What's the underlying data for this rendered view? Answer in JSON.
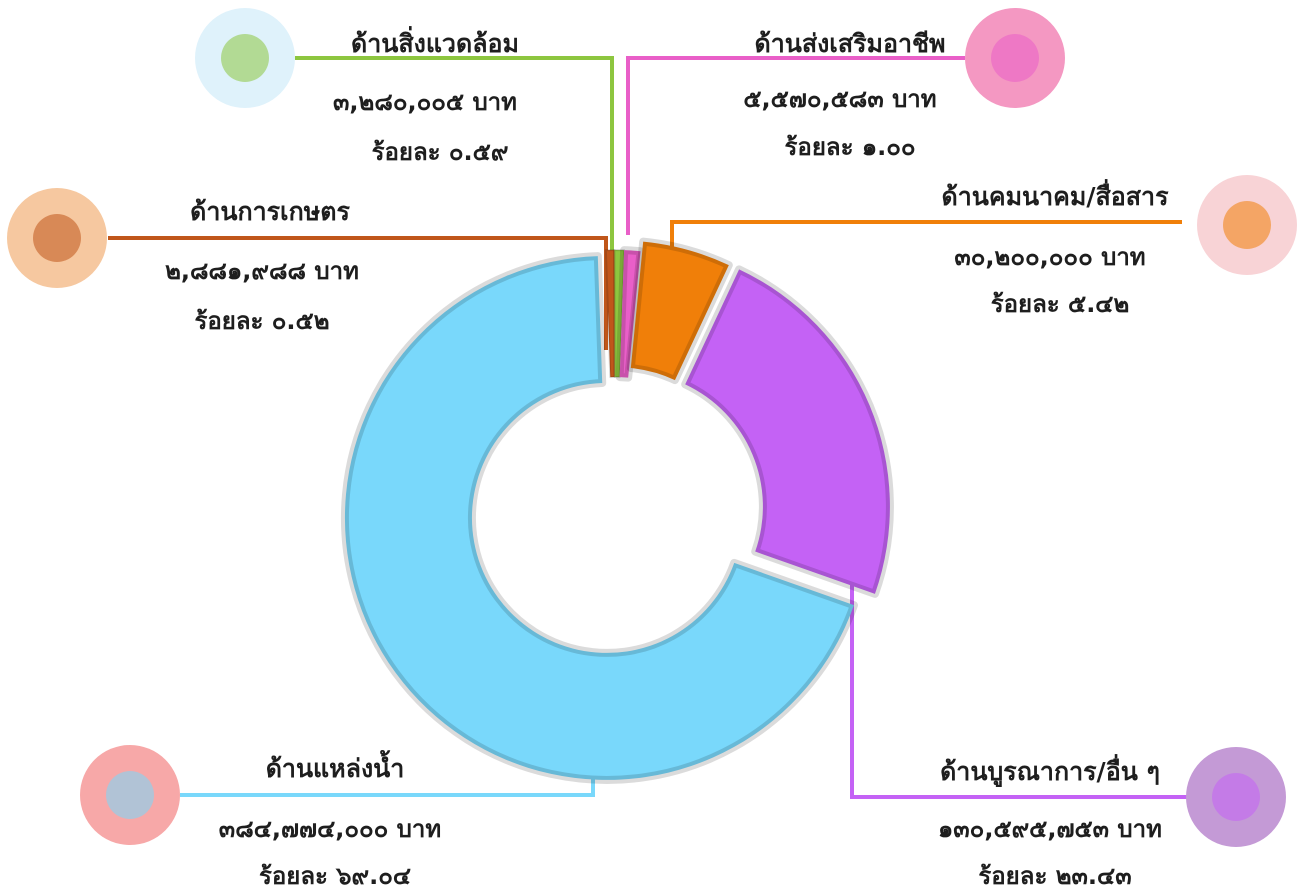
{
  "chart_data": {
    "type": "pie",
    "categories": [
      "ด้านการเกษตร",
      "ด้านสิ่งแวดล้อม",
      "ด้านส่งเสริมอาชีพ",
      "ด้านคมนาคม/สื่อสาร",
      "ด้านบูรณาการ/อื่น ๆ",
      "ด้านแหล่งน้ำ"
    ],
    "values": [
      2881988,
      3280005,
      5570583,
      30200000,
      130595753,
      384774000
    ],
    "value_labels": [
      "๒,๘๘๑,๙๘๘ บาท",
      "๓,๒๘๐,๐๐๕ บาท",
      "๕,๕๗๐,๕๘๓ บาท",
      "๓๐,๒๐๐,๐๐๐ บาท",
      "๑๓๐,๕๙๕,๗๕๓ บาท",
      "๓๘๔,๗๗๔,๐๐๐ บาท"
    ],
    "percentages": [
      0.52,
      0.59,
      1.0,
      5.42,
      23.43,
      69.04
    ],
    "percentage_labels": [
      "ร้อยละ ๐.๕๒",
      "ร้อยละ ๐.๕๙",
      "ร้อยละ ๑.๐๐",
      "ร้อยละ ๕.๔๒",
      "ร้อยละ ๒๓.๔๓",
      "ร้อยละ ๖๙.๐๔"
    ],
    "colors": [
      "#c0561a",
      "#8dc63f",
      "#e95fc8",
      "#f07f09",
      "#c462f5",
      "#79d8fb"
    ]
  }
}
